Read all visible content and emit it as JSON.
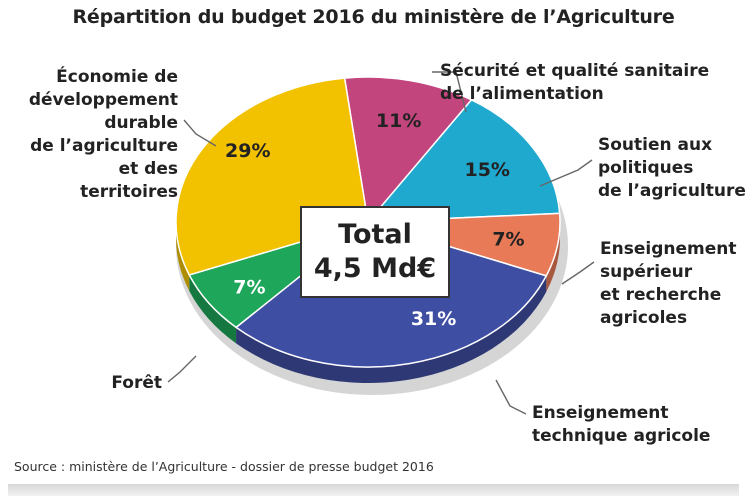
{
  "title": "Répartition du budget 2016 du ministère de l’Agriculture",
  "source": "Source : ministère de l’Agriculture - dossier de presse budget 2016",
  "total": {
    "label": "Total",
    "value": "4,5 Md€"
  },
  "chart_data": {
    "type": "pie",
    "title": "Répartition du budget 2016 du ministère de l’Agriculture",
    "total_label": "Total",
    "total_value": "4,5 Md€",
    "slices": [
      {
        "label": "Sécurité et qualité sanitaire\nde l’alimentation",
        "value": 11,
        "value_label": "11%",
        "color": "#c2457e"
      },
      {
        "label": "Soutien aux\npolitiques\nde l’agriculture",
        "value": 15,
        "value_label": "15%",
        "color": "#1fa9cf"
      },
      {
        "label": "Enseignement\nsupérieur\net recherche\nagricoles",
        "value": 7,
        "value_label": "7%",
        "color": "#e87a58"
      },
      {
        "label": "Enseignement\ntechnique agricole",
        "value": 31,
        "value_label": "31%",
        "color": "#3e4ea3"
      },
      {
        "label": "Forêt",
        "value": 7,
        "value_label": "7%",
        "color": "#1ea65a"
      },
      {
        "label": "Économie de\ndéveloppement\ndurable\nde l’agriculture\net des territoires",
        "value": 29,
        "value_label": "29%",
        "color": "#f2c200"
      }
    ]
  }
}
